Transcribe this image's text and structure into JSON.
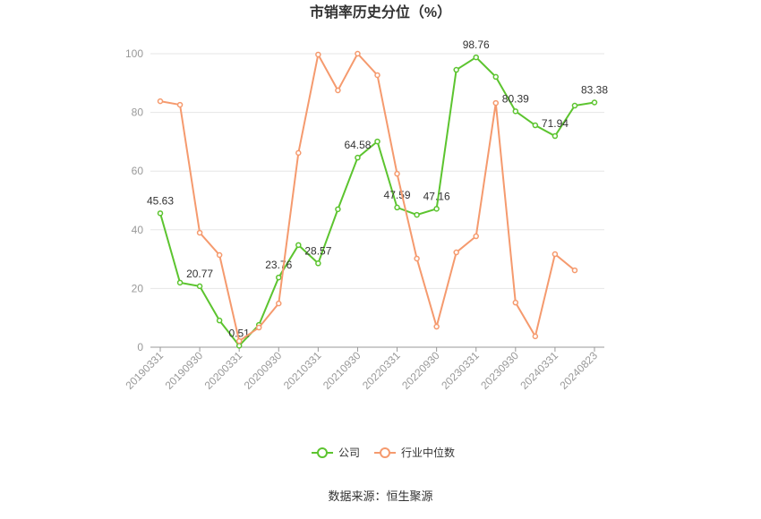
{
  "chart_data": {
    "type": "line",
    "title": "市销率历史分位（%）",
    "source": "数据来源：恒生聚源",
    "categories": [
      "20190331",
      null,
      "20190930",
      null,
      "20200331",
      null,
      "20200930",
      null,
      "20210331",
      null,
      "20210930",
      null,
      "20220331",
      null,
      "20220930",
      null,
      "20230331",
      null,
      "20230930",
      null,
      "20240331",
      null,
      "20240823"
    ],
    "series": [
      {
        "name": "公司",
        "color": "#5cc42f",
        "values": [
          45.63,
          22,
          20.77,
          9.1,
          0.51,
          7.6,
          23.76,
          34.8,
          28.57,
          47,
          64.58,
          70.1,
          47.59,
          45.1,
          47.16,
          94.5,
          98.76,
          92.1,
          80.39,
          75.6,
          71.94,
          82.3,
          83.38
        ],
        "value_labels": [
          "45.63",
          null,
          "20.77",
          null,
          "0.51",
          null,
          "23.76",
          null,
          "28.57",
          null,
          "64.58",
          null,
          "47.59",
          null,
          "47.16",
          null,
          "98.76",
          null,
          "80.39",
          null,
          "71.94",
          null,
          "83.38"
        ]
      },
      {
        "name": "行业中位数",
        "color": "#f59a6e",
        "values": [
          83.8,
          82.6,
          39,
          31.4,
          2.1,
          6.7,
          14.9,
          66.2,
          99.7,
          87.5,
          100,
          92.7,
          59.1,
          30.2,
          7,
          32.3,
          37.8,
          83.2,
          15.2,
          3.7,
          31.7,
          26.2,
          null
        ]
      }
    ],
    "ylim": [
      0,
      100
    ],
    "yticks": [
      0,
      20,
      40,
      60,
      80,
      100
    ],
    "grid": true
  }
}
